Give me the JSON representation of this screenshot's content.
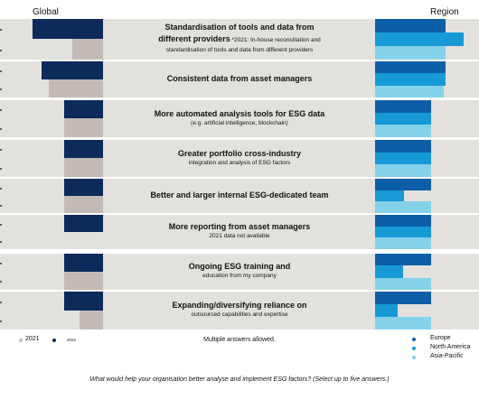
{
  "header": {
    "global_label": "Global",
    "region_label": "Region"
  },
  "colors": {
    "y2022": "#0c2a5a",
    "y2021": "#c2bbb5",
    "europe": "#0c5ea6",
    "north_america": "#1699d5",
    "asia_pacific": "#84d2ea",
    "row_bg": "#e3e1dd"
  },
  "chart_data": {
    "type": "bar",
    "question": "What would help your organisation better analyse and implement ESG factors? (Select up to five answers.)",
    "note": "Multiple answers allowed.",
    "legend": {
      "year_2021": "2021",
      "year_2022": "2022",
      "europe": "Europe",
      "north_america": "North America",
      "asia_pacific": "Asia-Pacific"
    },
    "grid": false,
    "items": [
      {
        "title": "Standardisation of tools and data from",
        "title2": "different providers",
        "inline_note": "*2021: In-house reconciliation and",
        "subtitle": "standardisation of tools and data from different providers",
        "global_2022": 78,
        "global_2021": 34,
        "europe": 78,
        "north_america": 98,
        "asia_pacific": 78
      },
      {
        "title": "Consistent data from asset managers",
        "subtitle": "",
        "global_2022": 68,
        "global_2021": 60,
        "europe": 78,
        "north_america": 78,
        "asia_pacific": 76
      },
      {
        "title": "More automated analysis tools for ESG data",
        "subtitle": "(e.g. artificial intelligence, blockchain)",
        "global_2022": 43,
        "global_2021": 43,
        "europe": 62,
        "north_america": 62,
        "asia_pacific": 62
      },
      {
        "title": "Greater portfolio cross-industry",
        "subtitle": "integration and analysis of ESG factors",
        "global_2022": 43,
        "global_2021": 43,
        "europe": 62,
        "north_america": 62,
        "asia_pacific": 62
      },
      {
        "title": "Better and larger internal ESG-dedicated team",
        "subtitle": "",
        "global_2022": 43,
        "global_2021": 43,
        "europe": 62,
        "north_america": 32,
        "asia_pacific": 62
      },
      {
        "title": "More reporting from asset managers",
        "subtitle": "2021 data not available",
        "global_2022": 43,
        "global_2021": null,
        "europe": 62,
        "north_america": 62,
        "asia_pacific": 62
      },
      {
        "title": "Ongoing ESG training and",
        "subtitle": "education from my company",
        "global_2022": 43,
        "global_2021": 43,
        "europe": 62,
        "north_america": 31,
        "asia_pacific": 62
      },
      {
        "title": "Expanding/diversifying reliance on",
        "subtitle": "outsourced capabilities and expertise",
        "global_2022": 43,
        "global_2021": 26,
        "europe": 62,
        "north_america": 25,
        "asia_pacific": 62
      }
    ]
  }
}
